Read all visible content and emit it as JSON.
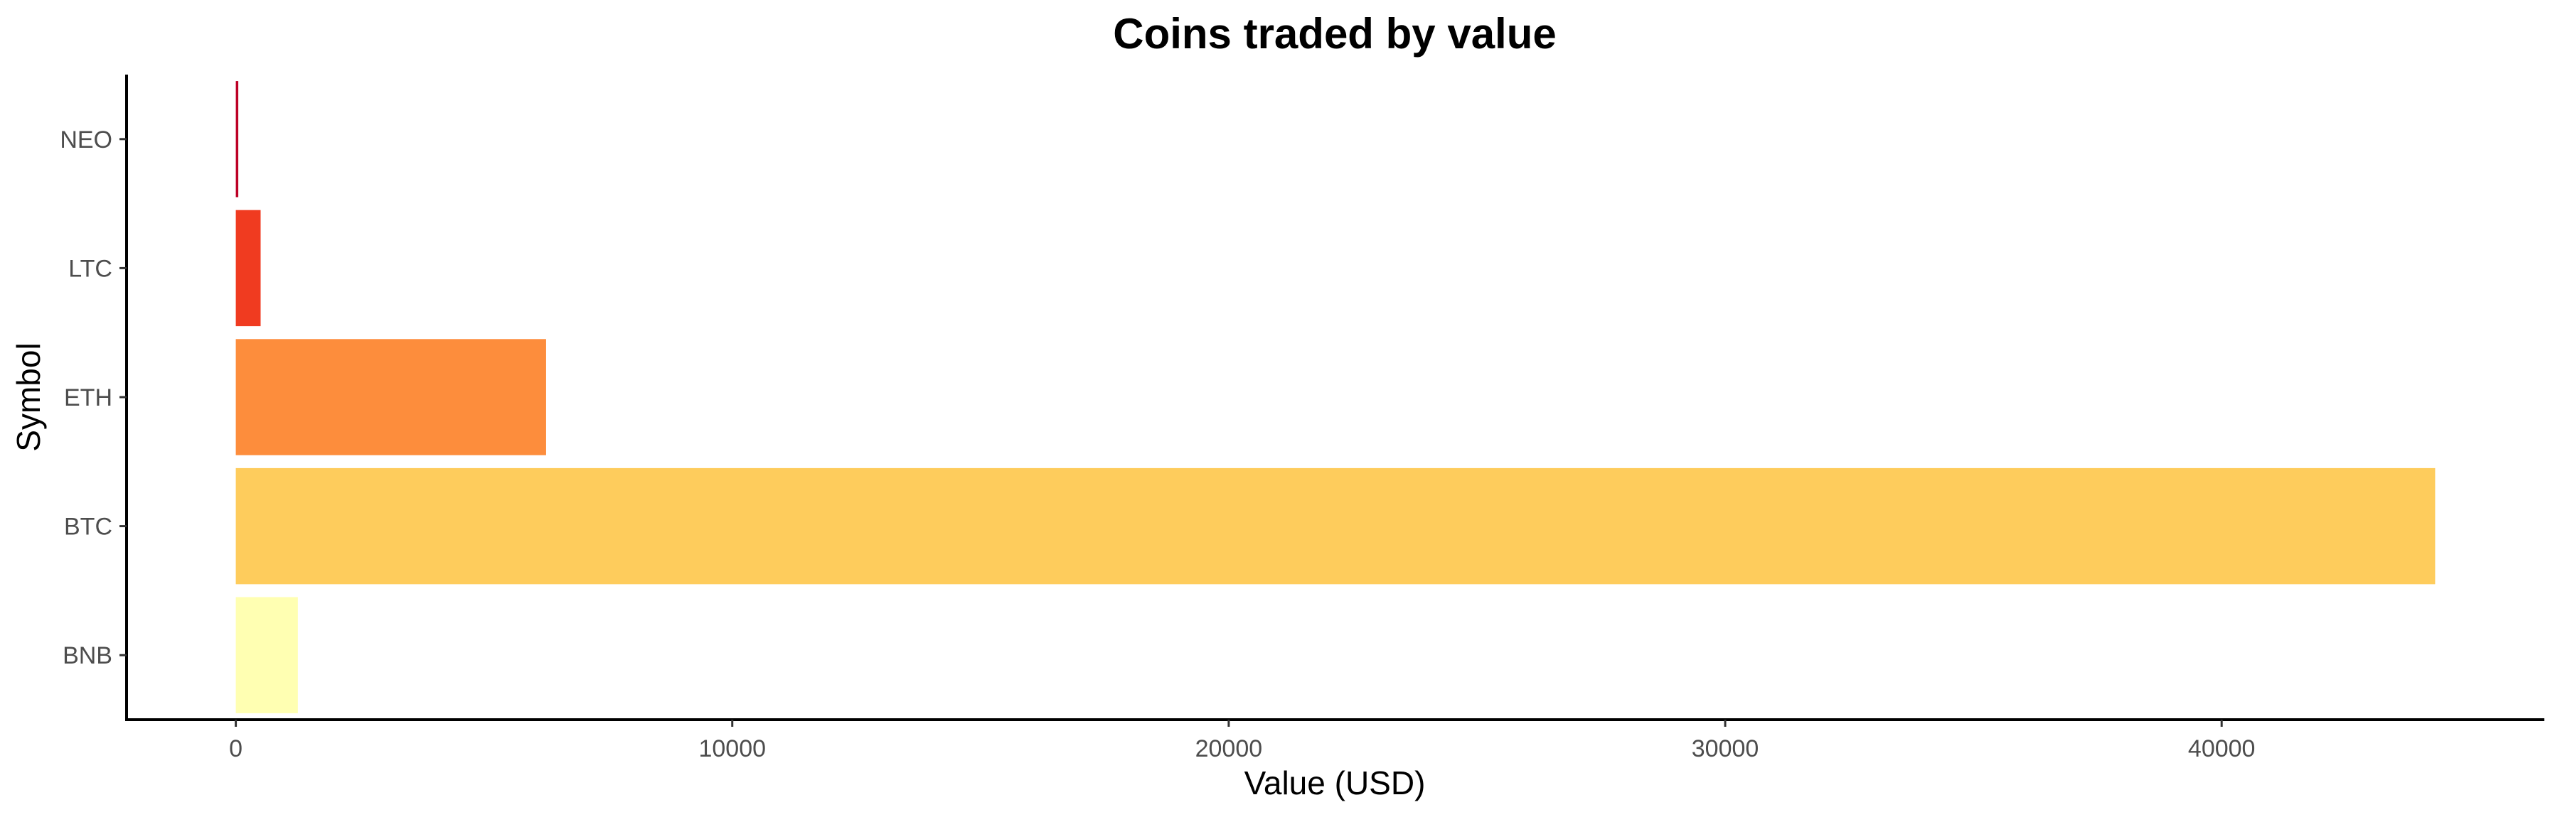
{
  "chart_data": {
    "type": "bar",
    "orientation": "horizontal",
    "title": "Coins traded by value",
    "xlabel": "Value (USD)",
    "ylabel": "Symbol",
    "categories": [
      "BNB",
      "BTC",
      "ETH",
      "LTC",
      "NEO"
    ],
    "values": [
      1250,
      44300,
      6250,
      500,
      50
    ],
    "colors": [
      "#FFFFB2",
      "#FECC5C",
      "#FD8D3C",
      "#F03B20",
      "#BD0026"
    ],
    "xlim": [
      -2200,
      46500
    ],
    "xticks": [
      0,
      10000,
      20000,
      30000,
      40000
    ],
    "xtick_labels": [
      "0",
      "10000",
      "20000",
      "30000",
      "40000"
    ],
    "grid": false,
    "legend": "none"
  }
}
